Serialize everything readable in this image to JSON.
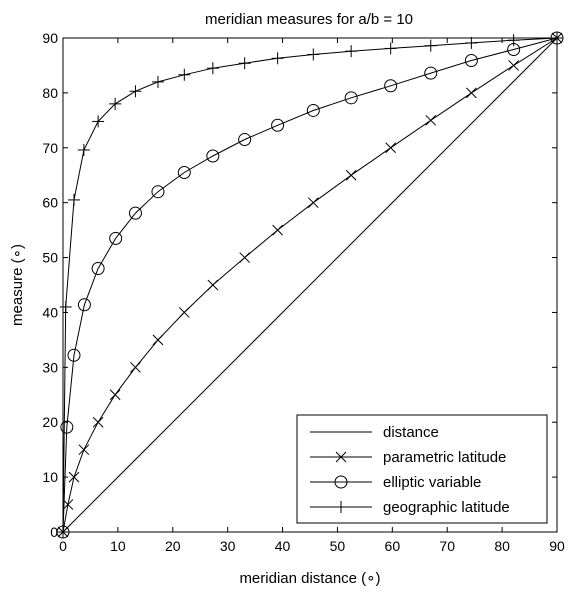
{
  "chart_data": {
    "type": "line",
    "title": "meridian measures for a/b = 10",
    "xlabel": "meridian distance (∘)",
    "ylabel": "measure (∘)",
    "xlim": [
      0,
      90
    ],
    "ylim": [
      0,
      90
    ],
    "xticks": [
      0,
      10,
      20,
      30,
      40,
      50,
      60,
      70,
      80,
      90
    ],
    "yticks": [
      0,
      10,
      20,
      30,
      40,
      50,
      60,
      70,
      80,
      90
    ],
    "grid": false,
    "legend_position": "bottom-right",
    "color": "#000000",
    "series": [
      {
        "name": "distance",
        "marker": "none",
        "x": [
          0,
          90
        ],
        "y": [
          0,
          90
        ]
      },
      {
        "name": "parametric latitude",
        "marker": "x",
        "x": [
          0,
          0.9,
          2.0,
          3.8,
          6.4,
          9.5,
          13.2,
          17.3,
          22.1,
          27.3,
          33.1,
          39.1,
          45.6,
          52.5,
          59.7,
          67.0,
          74.4,
          82.1,
          90
        ],
        "y": [
          0,
          5,
          10,
          15,
          20,
          25,
          30,
          35,
          40,
          45,
          50,
          55,
          60,
          65,
          70,
          75,
          80,
          85,
          90
        ]
      },
      {
        "name": "elliptic variable",
        "marker": "o",
        "x": [
          0,
          0.7,
          2.0,
          3.9,
          6.4,
          9.6,
          13.2,
          17.3,
          22.1,
          27.3,
          33.1,
          39.1,
          45.6,
          52.5,
          59.7,
          67.0,
          74.4,
          82.1,
          90
        ],
        "y": [
          0,
          19.1,
          32.2,
          41.4,
          48.0,
          53.5,
          58.1,
          62.0,
          65.5,
          68.5,
          71.5,
          74.1,
          76.8,
          79.1,
          81.3,
          83.6,
          85.9,
          87.9,
          90
        ]
      },
      {
        "name": "geographic latitude",
        "marker": "+",
        "x": [
          0,
          0.5,
          2.0,
          3.8,
          6.4,
          9.5,
          13.2,
          17.3,
          22.1,
          27.3,
          33.1,
          39.1,
          45.6,
          52.5,
          59.7,
          67.0,
          74.4,
          82.1,
          90
        ],
        "y": [
          0,
          41.0,
          60.5,
          69.6,
          74.8,
          78.0,
          80.3,
          82.0,
          83.3,
          84.5,
          85.4,
          86.3,
          87.0,
          87.6,
          88.1,
          88.6,
          89.1,
          89.6,
          90
        ]
      }
    ]
  }
}
